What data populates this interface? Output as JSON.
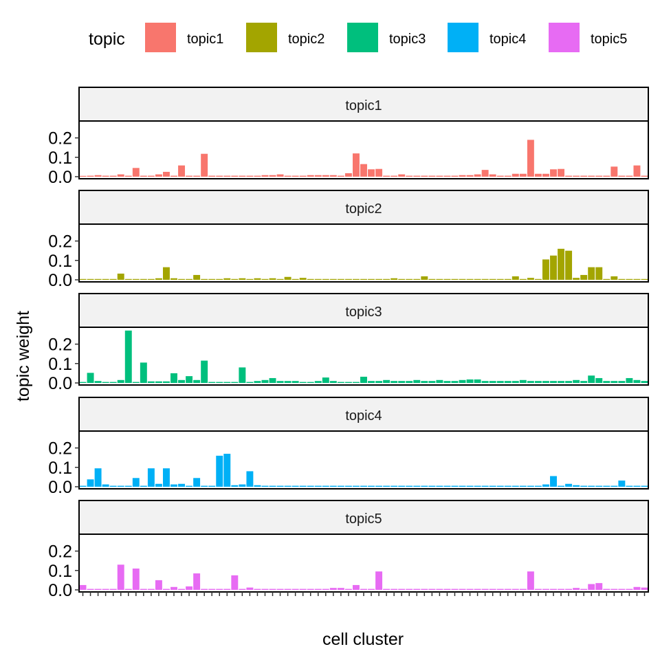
{
  "chart_data": {
    "type": "bar",
    "layout": "faceted, one panel per topic, shared x and y axes",
    "xlabel": "cell cluster",
    "ylabel": "topic weight",
    "ylim": [
      0,
      0.28
    ],
    "yticks": [
      0.0,
      0.1,
      0.2
    ],
    "ytick_labels": [
      "0.0",
      "0.1",
      "0.2"
    ],
    "n_categories": 75,
    "legend": {
      "title": "topic",
      "placement": "top",
      "entries": [
        "topic1",
        "topic2",
        "topic3",
        "topic4",
        "topic5"
      ]
    },
    "grid": false,
    "series": [
      {
        "name": "topic1",
        "color": "#F8766D",
        "values": [
          0.003,
          0.005,
          0.008,
          0.005,
          0.005,
          0.012,
          0.005,
          0.045,
          0.005,
          0.005,
          0.012,
          0.025,
          0.005,
          0.058,
          0.005,
          0.005,
          0.118,
          0.005,
          0.005,
          0.005,
          0.005,
          0.005,
          0.005,
          0.005,
          0.008,
          0.008,
          0.012,
          0.005,
          0.005,
          0.005,
          0.008,
          0.008,
          0.008,
          0.008,
          0.005,
          0.018,
          0.12,
          0.065,
          0.038,
          0.04,
          0.005,
          0.005,
          0.012,
          0.005,
          0.005,
          0.005,
          0.005,
          0.005,
          0.005,
          0.005,
          0.008,
          0.008,
          0.012,
          0.035,
          0.012,
          0.005,
          0.005,
          0.015,
          0.015,
          0.19,
          0.015,
          0.015,
          0.038,
          0.04,
          0.005,
          0.005,
          0.005,
          0.005,
          0.005,
          0.005,
          0.052,
          0.005,
          0.005,
          0.058,
          0.005
        ]
      },
      {
        "name": "topic2",
        "color": "#A3A500",
        "values": [
          0.004,
          0.004,
          0.004,
          0.004,
          0.004,
          0.032,
          0.004,
          0.004,
          0.004,
          0.004,
          0.008,
          0.065,
          0.008,
          0.004,
          0.004,
          0.025,
          0.004,
          0.004,
          0.004,
          0.008,
          0.004,
          0.008,
          0.004,
          0.008,
          0.004,
          0.008,
          0.004,
          0.015,
          0.004,
          0.01,
          0.004,
          0.004,
          0.004,
          0.004,
          0.004,
          0.004,
          0.004,
          0.004,
          0.004,
          0.004,
          0.004,
          0.008,
          0.004,
          0.004,
          0.004,
          0.018,
          0.004,
          0.004,
          0.004,
          0.004,
          0.004,
          0.004,
          0.004,
          0.004,
          0.004,
          0.004,
          0.004,
          0.018,
          0.004,
          0.01,
          0.004,
          0.105,
          0.125,
          0.16,
          0.15,
          0.01,
          0.025,
          0.065,
          0.065,
          0.004,
          0.018,
          0.004,
          0.004,
          0.004,
          0.004
        ]
      },
      {
        "name": "topic3",
        "color": "#00BF7D",
        "values": [
          0.005,
          0.052,
          0.01,
          0.005,
          0.005,
          0.015,
          0.27,
          0.005,
          0.105,
          0.008,
          0.008,
          0.008,
          0.05,
          0.015,
          0.035,
          0.015,
          0.115,
          0.005,
          0.005,
          0.005,
          0.005,
          0.08,
          0.005,
          0.01,
          0.015,
          0.025,
          0.01,
          0.01,
          0.01,
          0.005,
          0.005,
          0.01,
          0.028,
          0.01,
          0.005,
          0.005,
          0.005,
          0.032,
          0.01,
          0.01,
          0.015,
          0.01,
          0.01,
          0.01,
          0.015,
          0.01,
          0.01,
          0.015,
          0.01,
          0.01,
          0.015,
          0.018,
          0.018,
          0.01,
          0.01,
          0.01,
          0.01,
          0.01,
          0.015,
          0.01,
          0.01,
          0.01,
          0.01,
          0.01,
          0.01,
          0.015,
          0.01,
          0.038,
          0.025,
          0.01,
          0.01,
          0.01,
          0.025,
          0.015,
          0.01
        ]
      },
      {
        "name": "topic4",
        "color": "#00B0F6",
        "values": [
          0.005,
          0.038,
          0.095,
          0.012,
          0.005,
          0.005,
          0.005,
          0.045,
          0.005,
          0.095,
          0.015,
          0.095,
          0.012,
          0.015,
          0.005,
          0.045,
          0.005,
          0.005,
          0.16,
          0.17,
          0.008,
          0.012,
          0.08,
          0.008,
          0.005,
          0.005,
          0.005,
          0.005,
          0.005,
          0.005,
          0.005,
          0.005,
          0.005,
          0.005,
          0.005,
          0.005,
          0.005,
          0.005,
          0.005,
          0.005,
          0.005,
          0.005,
          0.005,
          0.005,
          0.005,
          0.005,
          0.005,
          0.005,
          0.005,
          0.005,
          0.005,
          0.005,
          0.005,
          0.005,
          0.005,
          0.005,
          0.005,
          0.005,
          0.005,
          0.005,
          0.005,
          0.012,
          0.055,
          0.005,
          0.015,
          0.008,
          0.005,
          0.005,
          0.005,
          0.005,
          0.005,
          0.032,
          0.005,
          0.005,
          0.005
        ]
      },
      {
        "name": "topic5",
        "color": "#E76BF3",
        "values": [
          0.025,
          0.005,
          0.005,
          0.005,
          0.005,
          0.13,
          0.005,
          0.11,
          0.005,
          0.005,
          0.05,
          0.005,
          0.015,
          0.005,
          0.018,
          0.085,
          0.005,
          0.005,
          0.005,
          0.005,
          0.075,
          0.005,
          0.012,
          0.005,
          0.005,
          0.005,
          0.005,
          0.005,
          0.005,
          0.005,
          0.005,
          0.005,
          0.005,
          0.01,
          0.01,
          0.005,
          0.025,
          0.005,
          0.005,
          0.095,
          0.005,
          0.005,
          0.005,
          0.005,
          0.005,
          0.005,
          0.005,
          0.005,
          0.005,
          0.005,
          0.005,
          0.005,
          0.005,
          0.005,
          0.005,
          0.005,
          0.005,
          0.005,
          0.005,
          0.095,
          0.005,
          0.005,
          0.005,
          0.005,
          0.005,
          0.01,
          0.005,
          0.03,
          0.035,
          0.005,
          0.005,
          0.005,
          0.005,
          0.015,
          0.012
        ]
      }
    ]
  }
}
